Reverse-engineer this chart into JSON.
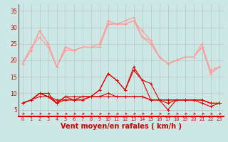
{
  "background_color": "#cce8e4",
  "grid_color": "#bbbbbb",
  "xlabel": "Vent moyen/en rafales ( km/h )",
  "xlabel_color": "#cc0000",
  "xlabel_fontsize": 7,
  "tick_color": "#cc0000",
  "x_ticks": [
    0,
    1,
    2,
    3,
    4,
    5,
    6,
    7,
    8,
    9,
    10,
    11,
    12,
    13,
    14,
    15,
    16,
    17,
    18,
    19,
    20,
    21,
    22,
    23
  ],
  "ylim": [
    3,
    37
  ],
  "yticks": [
    5,
    10,
    15,
    20,
    25,
    30,
    35
  ],
  "light_color": "#ff9999",
  "dark_color": "#dd0000",
  "series_light": [
    [
      19,
      23,
      29,
      25,
      18,
      24,
      23,
      24,
      24,
      25,
      31,
      31,
      31,
      32,
      27,
      26,
      21,
      19,
      20,
      21,
      21,
      24,
      16,
      18
    ],
    [
      19,
      23,
      29,
      25,
      18,
      24,
      23,
      24,
      24,
      24,
      31,
      31,
      31,
      32,
      29,
      26,
      21,
      19,
      20,
      21,
      21,
      24,
      17,
      18
    ],
    [
      19,
      24,
      27,
      24,
      18,
      23,
      23,
      24,
      24,
      24,
      32,
      31,
      32,
      33,
      27,
      25,
      21,
      19,
      20,
      21,
      21,
      25,
      16,
      18
    ]
  ],
  "series_dark": [
    [
      7,
      8,
      10,
      10,
      7,
      9,
      9,
      9,
      9,
      11,
      16,
      14,
      11,
      17,
      14,
      13,
      8,
      7,
      8,
      8,
      8,
      8,
      7,
      7
    ],
    [
      7,
      8,
      10,
      9,
      7,
      9,
      8,
      9,
      9,
      11,
      16,
      14,
      11,
      18,
      14,
      8,
      8,
      5,
      8,
      8,
      8,
      7,
      6,
      7
    ],
    [
      7,
      8,
      9,
      9,
      7,
      8,
      8,
      8,
      9,
      9,
      9,
      9,
      9,
      9,
      9,
      8,
      8,
      8,
      8,
      8,
      8,
      8,
      7,
      7
    ],
    [
      7,
      8,
      10,
      9,
      8,
      8,
      8,
      8,
      9,
      9,
      10,
      9,
      9,
      9,
      9,
      8,
      8,
      8,
      8,
      8,
      8,
      8,
      7,
      7
    ]
  ]
}
